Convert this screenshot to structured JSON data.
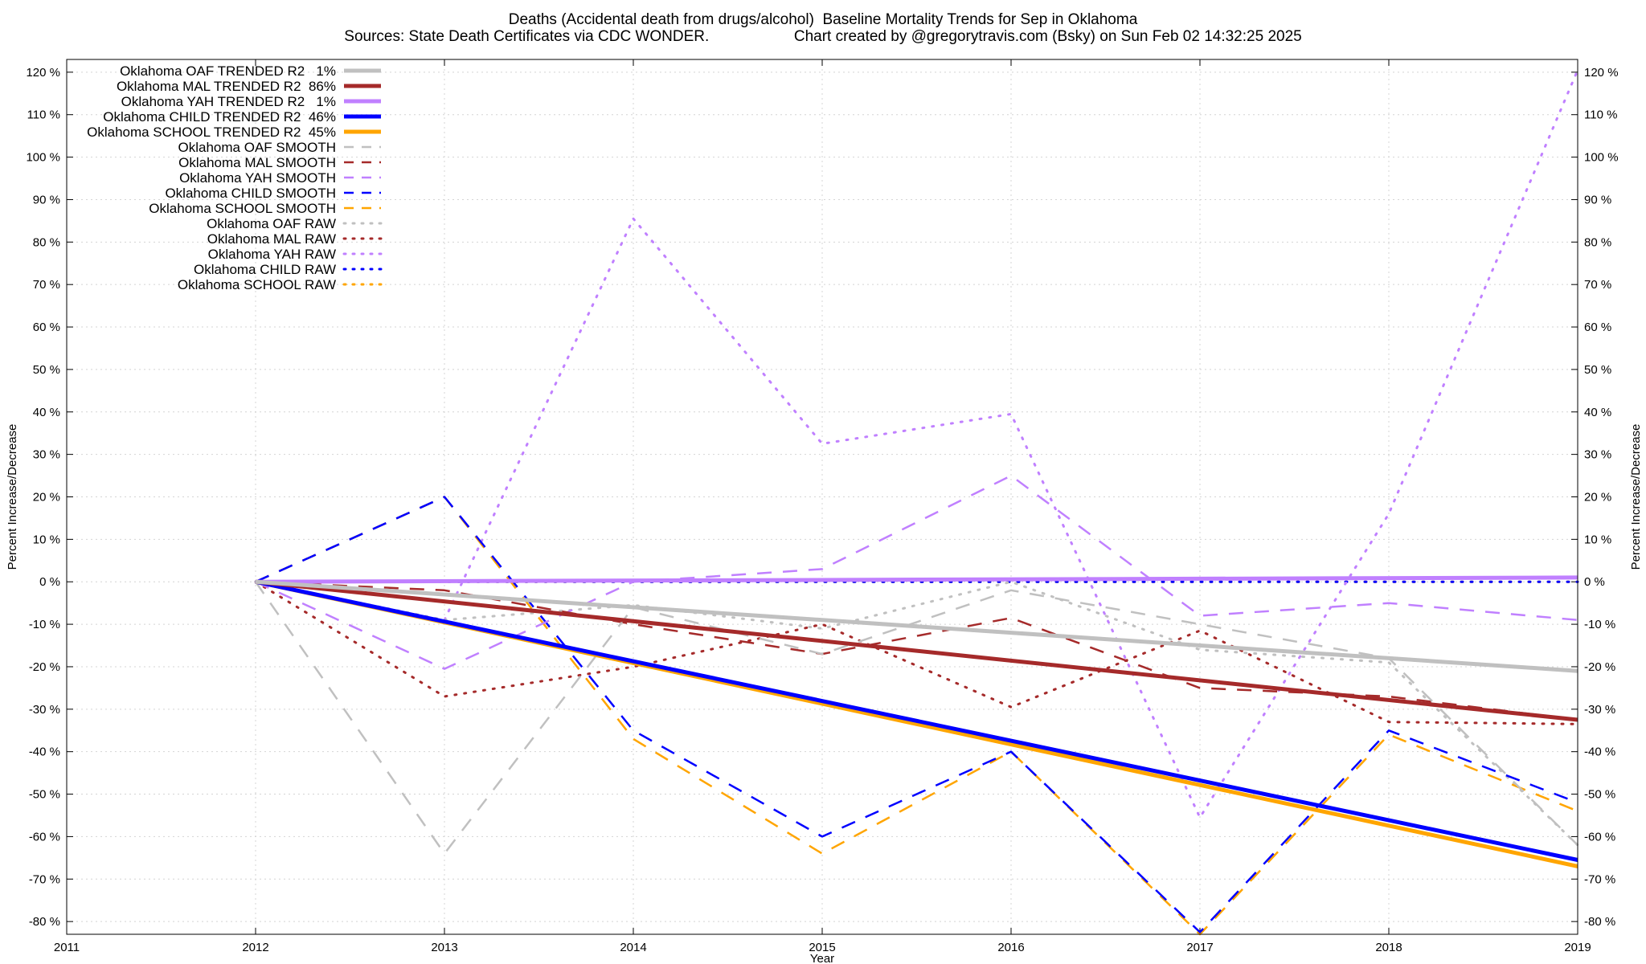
{
  "chart_data": {
    "type": "line",
    "title": "Deaths (Accidental death from drugs/alcohol)  Baseline Mortality Trends for Sep in Oklahoma",
    "subtitle_left": "Sources: State Death Certificates via CDC WONDER.",
    "subtitle_right": "Chart created by @gregorytravis.com (Bsky) on Sun Feb 02 14:32:25 2025",
    "xlabel": "Year",
    "ylabel": "Percent Increase/Decrease",
    "y2label": "Percent Increase/Decrease",
    "xlim": [
      2011,
      2019
    ],
    "ylim": [
      -83,
      123
    ],
    "xticks": [
      2011,
      2012,
      2013,
      2014,
      2015,
      2016,
      2017,
      2018,
      2019
    ],
    "yticks": [
      -80,
      -70,
      -60,
      -50,
      -40,
      -30,
      -20,
      -10,
      0,
      10,
      20,
      30,
      40,
      50,
      60,
      70,
      80,
      90,
      100,
      110,
      120
    ],
    "ytick_suffix": " %",
    "grid": true,
    "legend_position": "top-left",
    "series": [
      {
        "name": "Oklahoma OAF TRENDED R2   1%",
        "style": "trend",
        "color": "#c0c0c0",
        "x": [
          2012,
          2019
        ],
        "y": [
          0,
          -21
        ]
      },
      {
        "name": "Oklahoma MAL TRENDED R2  86%",
        "style": "trend",
        "color": "#a52a2a",
        "x": [
          2012,
          2019
        ],
        "y": [
          0,
          -32.5
        ]
      },
      {
        "name": "Oklahoma YAH TRENDED R2   1%",
        "style": "trend",
        "color": "#c080ff",
        "x": [
          2012,
          2019
        ],
        "y": [
          0,
          1
        ]
      },
      {
        "name": "Oklahoma CHILD TRENDED R2  46%",
        "style": "trend",
        "color": "#0000ff",
        "x": [
          2012,
          2019
        ],
        "y": [
          0,
          -65.5
        ]
      },
      {
        "name": "Oklahoma SCHOOL TRENDED R2  45%",
        "style": "trend",
        "color": "#ffa500",
        "x": [
          2012,
          2019
        ],
        "y": [
          0,
          -67
        ]
      },
      {
        "name": "Oklahoma OAF SMOOTH",
        "style": "smooth",
        "color": "#c0c0c0",
        "x": [
          2012,
          2013,
          2014,
          2015,
          2016,
          2017,
          2018,
          2019
        ],
        "y": [
          0,
          -64,
          -6,
          -17,
          -2,
          -10,
          -18,
          -62
        ]
      },
      {
        "name": "Oklahoma MAL SMOOTH",
        "style": "smooth",
        "color": "#a52a2a",
        "x": [
          2012,
          2013,
          2014,
          2015,
          2016,
          2017,
          2018,
          2019
        ],
        "y": [
          0,
          -2,
          -10,
          -17,
          -8.5,
          -25,
          -27,
          -32.5
        ]
      },
      {
        "name": "Oklahoma YAH SMOOTH",
        "style": "smooth",
        "color": "#c080ff",
        "x": [
          2012,
          2013,
          2014,
          2015,
          2016,
          2017,
          2018,
          2019
        ],
        "y": [
          0,
          -20.5,
          0,
          3,
          25,
          -8,
          -5,
          -9
        ]
      },
      {
        "name": "Oklahoma CHILD SMOOTH",
        "style": "smooth",
        "color": "#0000ff",
        "x": [
          2012,
          2013,
          2014,
          2015,
          2016,
          2017,
          2018,
          2019
        ],
        "y": [
          0,
          20,
          -35,
          -60,
          -40,
          -82.5,
          -35,
          -52
        ]
      },
      {
        "name": "Oklahoma SCHOOL SMOOTH",
        "style": "smooth",
        "color": "#ffa500",
        "x": [
          2012,
          2013,
          2014,
          2015,
          2016,
          2017,
          2018,
          2019
        ],
        "y": [
          0,
          20,
          -37,
          -64,
          -40,
          -83,
          -36,
          -54
        ]
      },
      {
        "name": "Oklahoma OAF RAW",
        "style": "raw",
        "color": "#c0c0c0",
        "x": [
          2012,
          2013,
          2014,
          2015,
          2016,
          2017,
          2018,
          2019
        ],
        "y": [
          0,
          -9,
          -5.5,
          -11,
          0,
          -16,
          -19,
          -62
        ]
      },
      {
        "name": "Oklahoma MAL RAW",
        "style": "raw",
        "color": "#a52a2a",
        "x": [
          2012,
          2013,
          2014,
          2015,
          2016,
          2017,
          2018,
          2019
        ],
        "y": [
          0,
          -27,
          -20,
          -10,
          -29.5,
          -11.5,
          -33,
          -33.5
        ]
      },
      {
        "name": "Oklahoma YAH RAW",
        "style": "raw",
        "color": "#c080ff",
        "x": [
          2012,
          2013,
          2014,
          2015,
          2016,
          2017,
          2018,
          2019
        ],
        "y": [
          0,
          -9,
          85.5,
          32.5,
          39.5,
          -55.5,
          16,
          120.5
        ]
      },
      {
        "name": "Oklahoma CHILD RAW",
        "style": "raw",
        "color": "#0000ff",
        "x": [
          2012,
          2013,
          2014,
          2015,
          2016,
          2017,
          2018,
          2019
        ],
        "y": [
          0,
          0,
          0,
          0,
          0,
          0,
          0,
          0
        ]
      },
      {
        "name": "Oklahoma SCHOOL RAW",
        "style": "raw",
        "color": "#ffa500",
        "x": [
          2012,
          2013,
          2014,
          2015,
          2016,
          2017,
          2018,
          2019
        ],
        "y": [
          0,
          0,
          0,
          0,
          0,
          0,
          0,
          0
        ]
      }
    ]
  }
}
